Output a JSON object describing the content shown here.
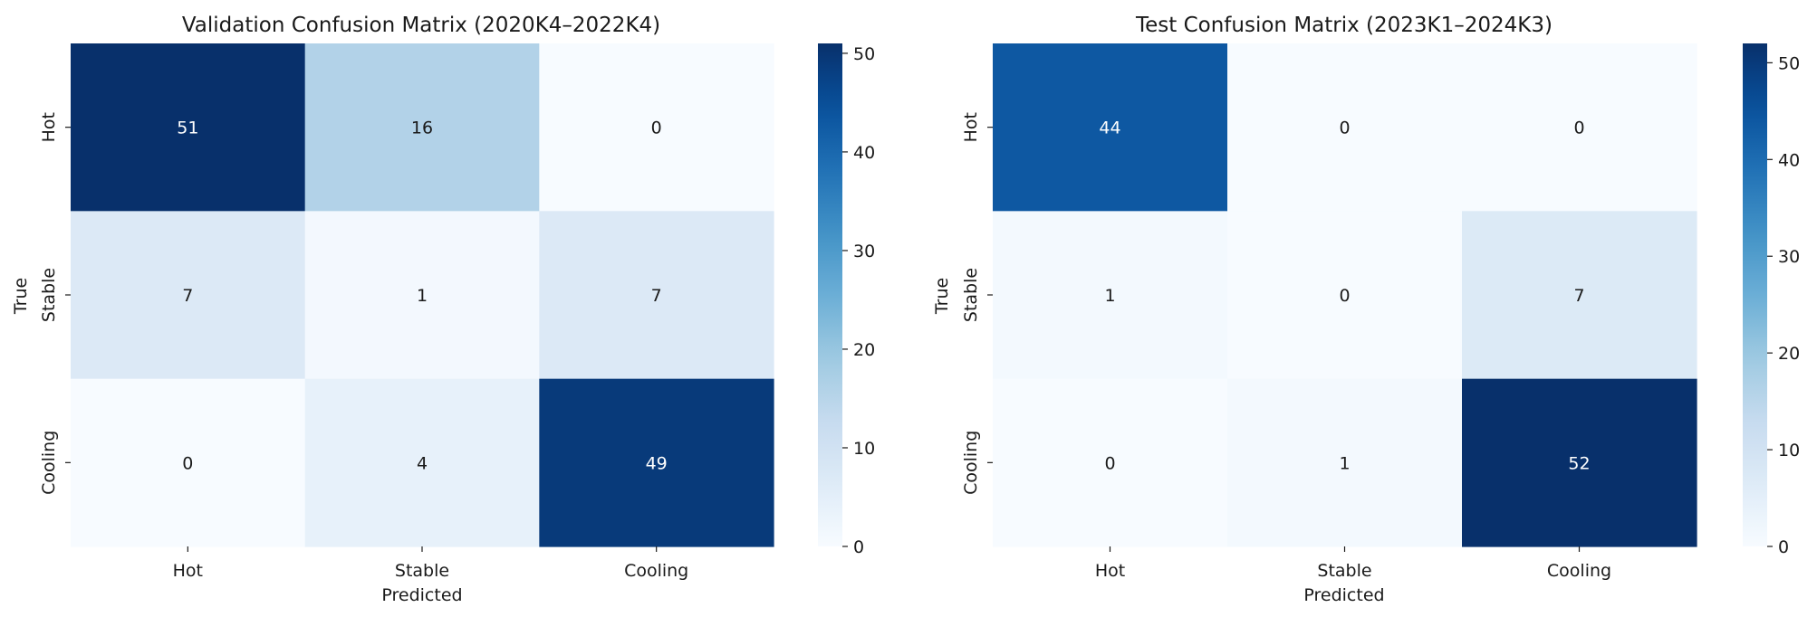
{
  "chart_data": [
    {
      "type": "heatmap",
      "title": "Validation Confusion Matrix (2020K4–2022K4)",
      "xlabel": "Predicted",
      "ylabel": "True",
      "x_categories": [
        "Hot",
        "Stable",
        "Cooling"
      ],
      "y_categories": [
        "Hot",
        "Stable",
        "Cooling"
      ],
      "values": [
        [
          51,
          16,
          0
        ],
        [
          7,
          1,
          7
        ],
        [
          0,
          4,
          49
        ]
      ],
      "colormap": "Blues",
      "colorbar": {
        "range": [
          0,
          51
        ],
        "ticks": [
          0,
          10,
          20,
          30,
          40,
          50
        ]
      }
    },
    {
      "type": "heatmap",
      "title": "Test Confusion Matrix (2023K1–2024K3)",
      "xlabel": "Predicted",
      "ylabel": "True",
      "x_categories": [
        "Hot",
        "Stable",
        "Cooling"
      ],
      "y_categories": [
        "Hot",
        "Stable",
        "Cooling"
      ],
      "values": [
        [
          44,
          0,
          0
        ],
        [
          1,
          0,
          7
        ],
        [
          0,
          1,
          52
        ]
      ],
      "colormap": "Blues",
      "colorbar": {
        "range": [
          0,
          52
        ],
        "ticks": [
          0,
          10,
          20,
          30,
          40,
          50
        ]
      }
    }
  ]
}
